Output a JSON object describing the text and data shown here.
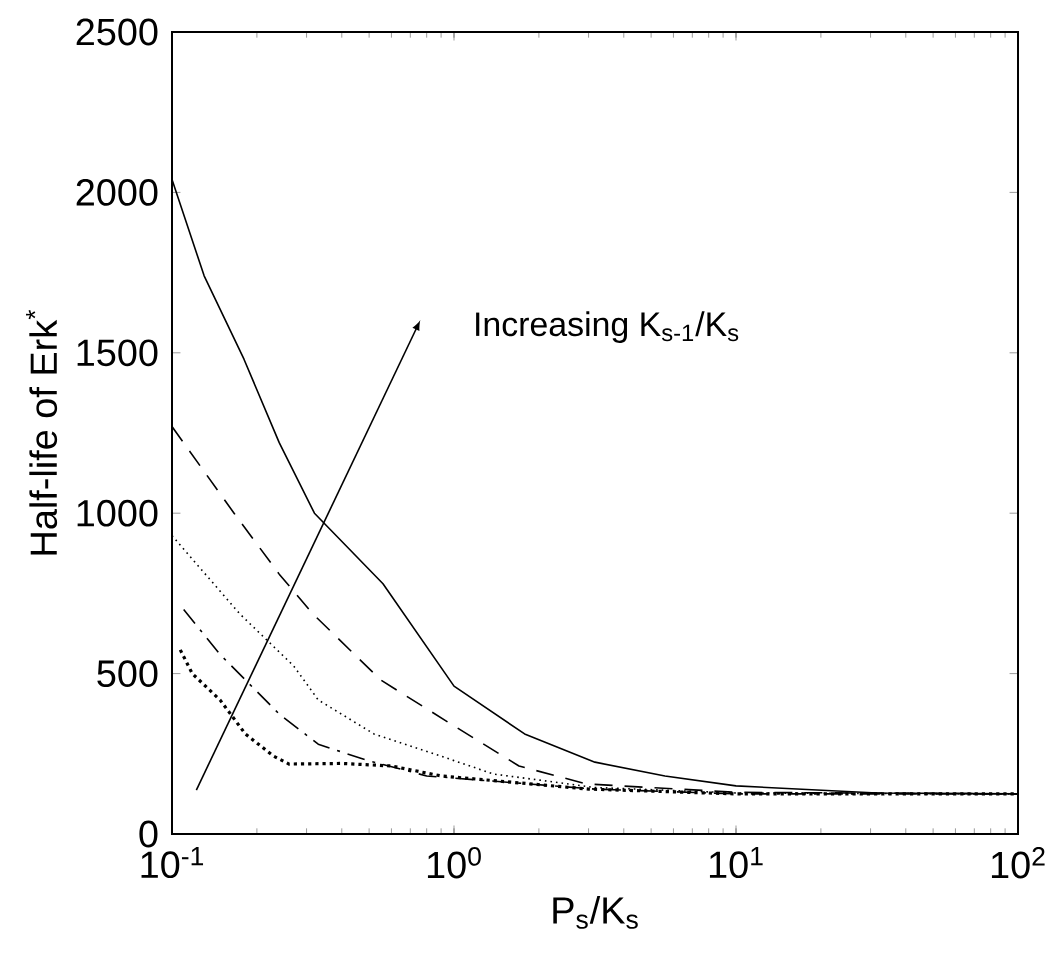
{
  "chart_data": {
    "type": "line",
    "xlabel": "P$_{s}$/K$_{s}$",
    "ylabel": "Half-life of Erk$^{*}$",
    "annotations": [
      "Increasing K$_{s-1}$/K$_{s}$"
    ],
    "log": "x",
    "xlim": [
      0.1,
      100
    ],
    "ylim": [
      0,
      2500
    ],
    "xticks": [
      {
        "value": 0.1,
        "label": "10$^{-1}$"
      },
      {
        "value": 1,
        "label": "10$^{0}$"
      },
      {
        "value": 10,
        "label": "10$^{1}$"
      },
      {
        "value": 100,
        "label": "10$^{2}$"
      }
    ],
    "yticks": [
      0,
      500,
      1000,
      1500,
      2000,
      2500
    ],
    "grid": false,
    "marker": "none",
    "series": [
      {
        "color": "#000000",
        "line_style": "solid",
        "x": [
          0.1,
          0.13,
          0.18,
          0.24,
          0.32,
          0.56,
          1,
          1.78,
          3.16,
          5.6,
          10,
          31.6,
          100
        ],
        "values": [
          2040,
          1740,
          1480,
          1220,
          1000,
          780,
          461,
          312,
          224,
          181,
          150,
          128,
          125
        ]
      },
      {
        "color": "#000000",
        "line_style": "dashed",
        "x": [
          0.1,
          0.166,
          0.24,
          0.316,
          0.55,
          1,
          1.7,
          2.95,
          10,
          100
        ],
        "values": [
          1270,
          1000,
          810,
          686,
          480,
          337,
          212,
          156,
          130,
          125
        ]
      },
      {
        "color": "#000000",
        "line_style": "dotted",
        "x": [
          0.1,
          0.174,
          0.27,
          0.33,
          0.52,
          0.85,
          1.38,
          3.16,
          10,
          100
        ],
        "values": [
          930,
          686,
          524,
          418,
          312,
          250,
          187,
          145,
          128,
          125
        ]
      },
      {
        "color": "#000000",
        "line_style": "dashdotted",
        "x": [
          0.11,
          0.148,
          0.24,
          0.33,
          0.49,
          0.8,
          3.16,
          10,
          100
        ],
        "values": [
          700,
          560,
          374,
          280,
          230,
          181,
          140,
          125,
          125
        ]
      },
      {
        "color": "#000000",
        "line_style": "dotted",
        "x": [
          0.107,
          0.118,
          0.148,
          0.182,
          0.229,
          0.26,
          0.4,
          0.6,
          0.9,
          3,
          10,
          100
        ],
        "values": [
          574,
          500,
          418,
          312,
          243,
          218,
          220,
          212,
          181,
          140,
          125,
          125
        ]
      }
    ]
  }
}
